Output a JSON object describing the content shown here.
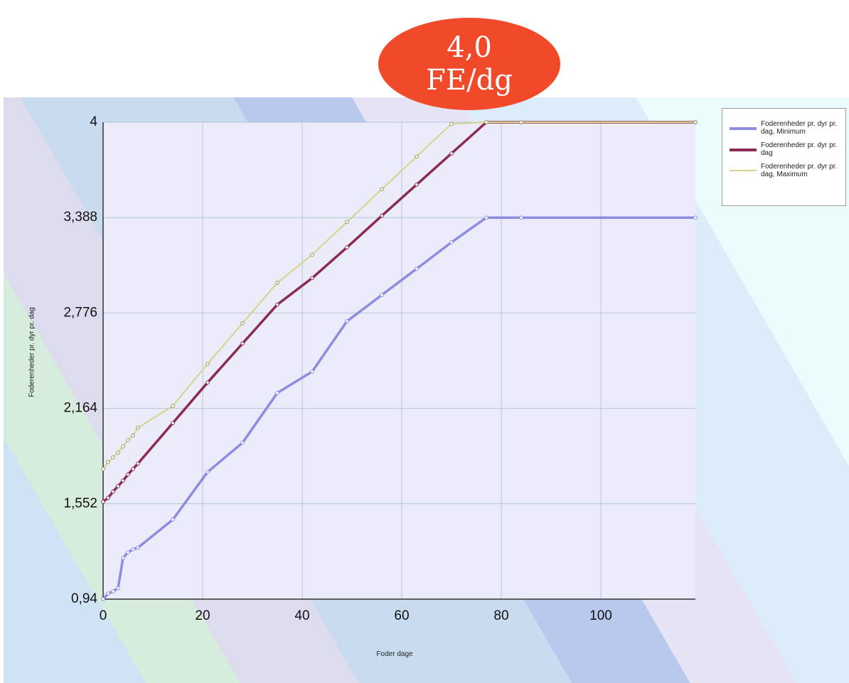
{
  "chart_data": {
    "type": "line",
    "annotation": [
      "4,0",
      "FE/dg"
    ],
    "y_label": "Foderenheder pr. dyr pr. dag",
    "x_label": "Foder dage",
    "x": [
      0,
      1,
      2,
      3,
      4,
      5,
      6,
      7,
      14,
      21,
      28,
      35,
      42,
      49,
      56,
      63,
      70,
      77,
      84,
      119
    ],
    "series": [
      {
        "name": "Foderenheder pr. dyr pr. dag, Minimum",
        "color": "#8c8ce0",
        "values": [
          0.94,
          0.976,
          0.99,
          1.01,
          1.205,
          1.24,
          1.26,
          1.27,
          1.45,
          1.756,
          1.943,
          2.263,
          2.4,
          2.723,
          2.892,
          3.06,
          3.23,
          3.388,
          3.388,
          3.388
        ]
      },
      {
        "name": "Foderenheder pr. dyr pr. dag",
        "color": "#8b2a52",
        "values": [
          1.565,
          1.59,
          1.63,
          1.665,
          1.7,
          1.74,
          1.775,
          1.81,
          2.07,
          2.33,
          2.58,
          2.83,
          3.0,
          3.197,
          3.4,
          3.6,
          3.8,
          4,
          4,
          4
        ]
      },
      {
        "name": "Foderenheder pr. dyr pr. dag, Maximum",
        "color": "#d4d48a",
        "values": [
          1.775,
          1.82,
          1.85,
          1.88,
          1.92,
          1.96,
          1.99,
          2.04,
          2.18,
          2.45,
          2.71,
          2.97,
          3.15,
          3.36,
          3.57,
          3.78,
          3.99,
          4,
          4,
          4
        ]
      }
    ],
    "xlim": [
      0,
      119
    ],
    "xticks": [
      0,
      20,
      40,
      60,
      80,
      100
    ],
    "ylim": [
      0.94,
      4
    ],
    "yticks": [
      {
        "value": 0.94,
        "label": "0,94"
      },
      {
        "value": 1.552,
        "label": "1,552"
      },
      {
        "value": 2.164,
        "label": "2,164"
      },
      {
        "value": 2.776,
        "label": "2,776"
      },
      {
        "value": 3.388,
        "label": "3,388"
      },
      4
    ],
    "grid": true,
    "legend": "right"
  }
}
